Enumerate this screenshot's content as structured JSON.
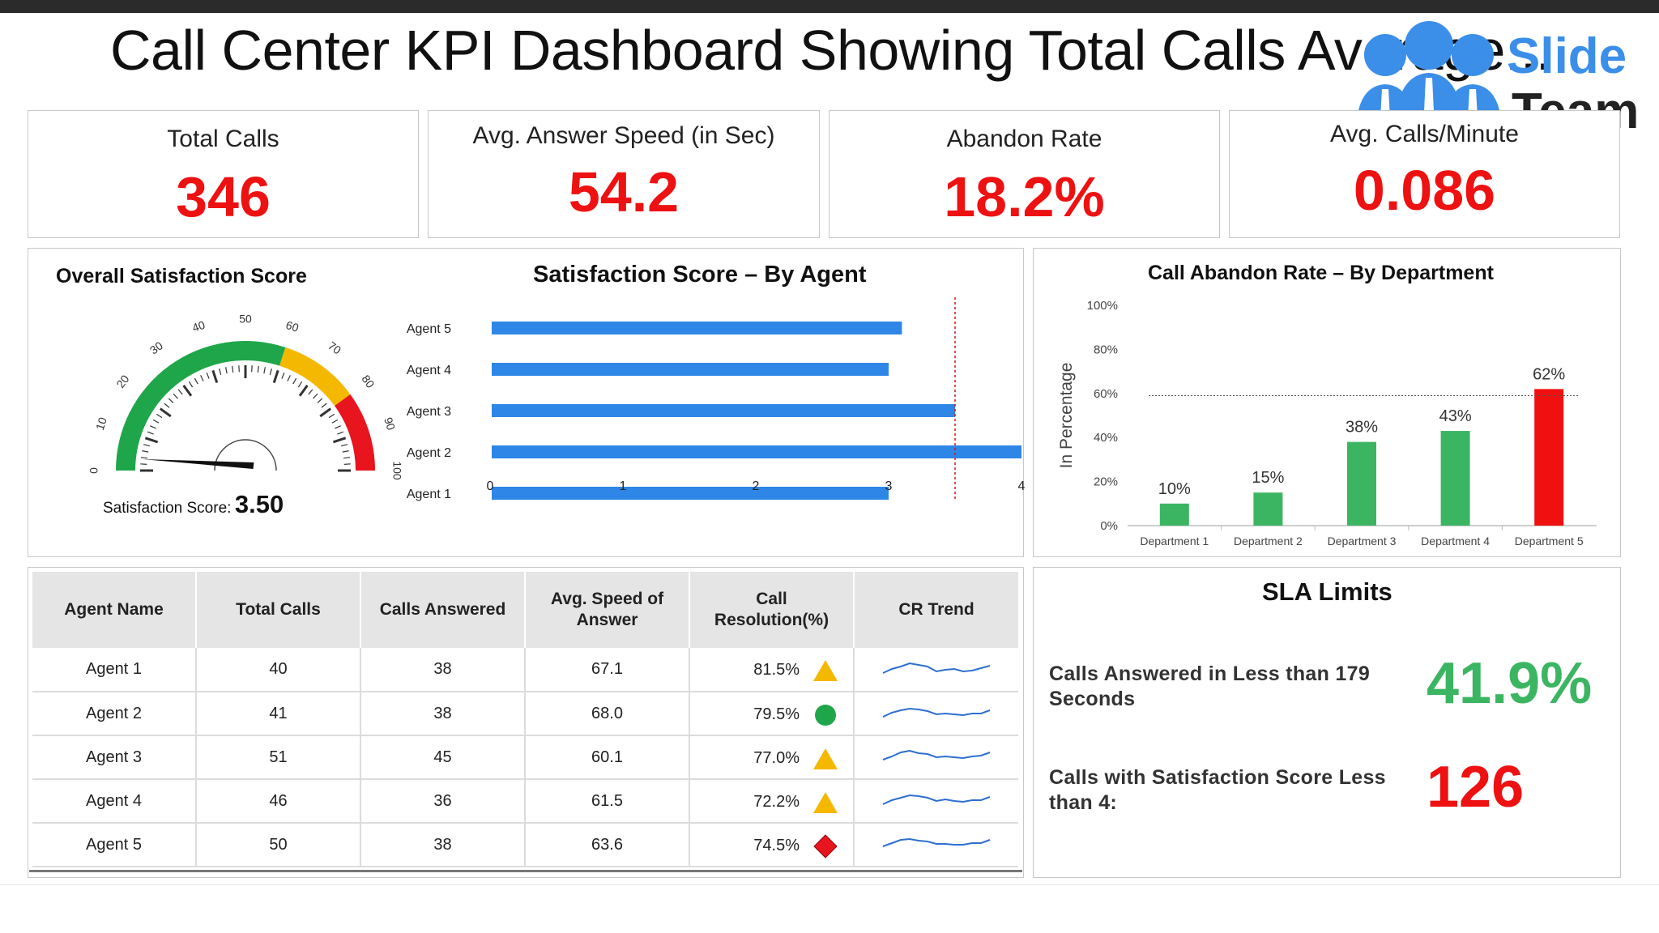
{
  "page": {
    "title": "Call Center KPI Dashboard Showing Total Calls Average..."
  },
  "logo": {
    "line1": "Slide",
    "line2": "Team"
  },
  "colors": {
    "accent_red": "#ee1111",
    "bar_blue": "#2e86e6",
    "bar_green": "#3cb562",
    "gauge_green": "#1fa64a",
    "gauge_yellow": "#f5b800",
    "gauge_red": "#e8141e"
  },
  "kpis": [
    {
      "label": "Total Calls",
      "value": "346"
    },
    {
      "label": "Avg. Answer Speed (in Sec)",
      "value": "54.2"
    },
    {
      "label": "Abandon Rate",
      "value": "18.2%"
    },
    {
      "label": "Avg. Calls/Minute",
      "value": "0.086"
    }
  ],
  "gauge": {
    "title": "Overall Satisfaction Score",
    "score_label": "Satisfaction Score:",
    "score_value": "3.50"
  },
  "chart_data": [
    {
      "type": "gauge",
      "title": "Overall Satisfaction Score",
      "range": [
        0,
        100
      ],
      "ticks": [
        "0",
        "10",
        "20",
        "30",
        "40",
        "50",
        "60",
        "70",
        "80",
        "90",
        "100"
      ],
      "bands": [
        {
          "from": 0,
          "to": 60,
          "color": "#1fa64a"
        },
        {
          "from": 60,
          "to": 80,
          "color": "#f5b800"
        },
        {
          "from": 80,
          "to": 100,
          "color": "#e8141e"
        }
      ],
      "needle": 3.5
    },
    {
      "type": "bar",
      "orientation": "horizontal",
      "title": "Satisfaction Score – By Agent",
      "categories": [
        "Agent 5",
        "Agent 4",
        "Agent 3",
        "Agent 2",
        "Agent 1"
      ],
      "values": [
        3.1,
        3.0,
        3.5,
        4.0,
        3.0
      ],
      "xlim": [
        0,
        4
      ],
      "xticks": [
        "0",
        "1",
        "2",
        "3",
        "4"
      ],
      "reference_line": 3.5,
      "color": "#2e86e6"
    },
    {
      "type": "bar",
      "title": "Call Abandon Rate – By Department",
      "ylabel": "In Percentage",
      "categories": [
        "Department 1",
        "Department 2",
        "Department 3",
        "Department 4",
        "Department 5"
      ],
      "values": [
        10,
        15,
        38,
        43,
        62
      ],
      "data_labels": [
        "10%",
        "15%",
        "38%",
        "43%",
        "62%"
      ],
      "colors": [
        "#3cb562",
        "#3cb562",
        "#3cb562",
        "#3cb562",
        "#f01010"
      ],
      "ylim": [
        0,
        100
      ],
      "yticks": [
        "0%",
        "20%",
        "40%",
        "60%",
        "80%",
        "100%"
      ],
      "reference_line": 59
    }
  ],
  "table": {
    "headers": [
      "Agent Name",
      "Total Calls",
      "Calls Answered",
      "Avg. Speed of Answer",
      "Call Resolution(%)",
      "CR Trend"
    ],
    "rows": [
      {
        "name": "Agent 1",
        "total": "40",
        "answered": "38",
        "speed": "67.1",
        "cr": "81.5%",
        "indicator": "triangle"
      },
      {
        "name": "Agent 2",
        "total": "41",
        "answered": "38",
        "speed": "68.0",
        "cr": "79.5%",
        "indicator": "circle"
      },
      {
        "name": "Agent 3",
        "total": "51",
        "answered": "45",
        "speed": "60.1",
        "cr": "77.0%",
        "indicator": "triangle"
      },
      {
        "name": "Agent 4",
        "total": "46",
        "answered": "36",
        "speed": "61.5",
        "cr": "72.2%",
        "indicator": "triangle"
      },
      {
        "name": "Agent 5",
        "total": "50",
        "answered": "38",
        "speed": "63.6",
        "cr": "74.5%",
        "indicator": "diamond"
      }
    ]
  },
  "sla": {
    "title": "SLA Limits",
    "items": [
      {
        "label_line1": "Calls Answered in Less than 179",
        "label_line2": "Seconds",
        "value": "41.9%",
        "color": "#3cb562"
      },
      {
        "label_line1": "Calls with Satisfaction Score Less",
        "label_line2": "than 4:",
        "value": "126",
        "color": "#ee1111"
      }
    ]
  }
}
